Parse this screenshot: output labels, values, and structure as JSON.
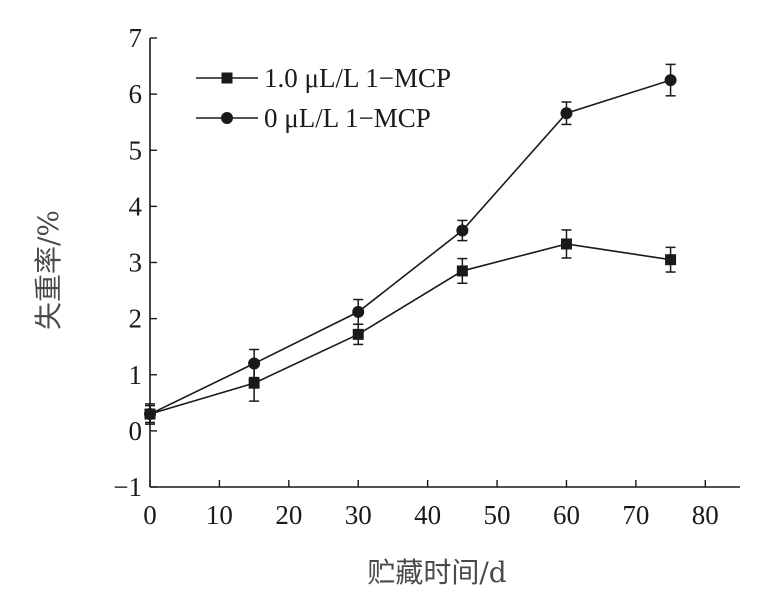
{
  "chart_data": {
    "type": "line",
    "xlabel": "贮藏时间/d",
    "ylabel": "失重率/%",
    "xlim": [
      0,
      85
    ],
    "ylim": [
      -1,
      7
    ],
    "xticks": [
      0,
      10,
      20,
      30,
      40,
      50,
      60,
      70,
      80
    ],
    "yticks": [
      -1,
      0,
      1,
      2,
      3,
      4,
      5,
      6,
      7
    ],
    "ytick_labels": [
      "−1",
      "0",
      "1",
      "2",
      "3",
      "4",
      "5",
      "6",
      "7"
    ],
    "grid": false,
    "legend": {
      "placement": "top-left"
    },
    "series": [
      {
        "name": "1.0 μL/L 1−MCP",
        "marker": "square",
        "color": "#1a1a1a",
        "x": [
          0,
          15,
          30,
          45,
          60,
          75
        ],
        "y": [
          0.3,
          0.85,
          1.72,
          2.85,
          3.33,
          3.05
        ],
        "err": [
          0.15,
          0.32,
          0.18,
          0.22,
          0.25,
          0.22
        ]
      },
      {
        "name": "0 μL/L 1−MCP",
        "marker": "circle",
        "color": "#1a1a1a",
        "x": [
          0,
          15,
          30,
          45,
          60,
          75
        ],
        "y": [
          0.3,
          1.2,
          2.12,
          3.57,
          5.66,
          6.25
        ],
        "err": [
          0.18,
          0.25,
          0.22,
          0.18,
          0.2,
          0.28
        ]
      }
    ]
  }
}
